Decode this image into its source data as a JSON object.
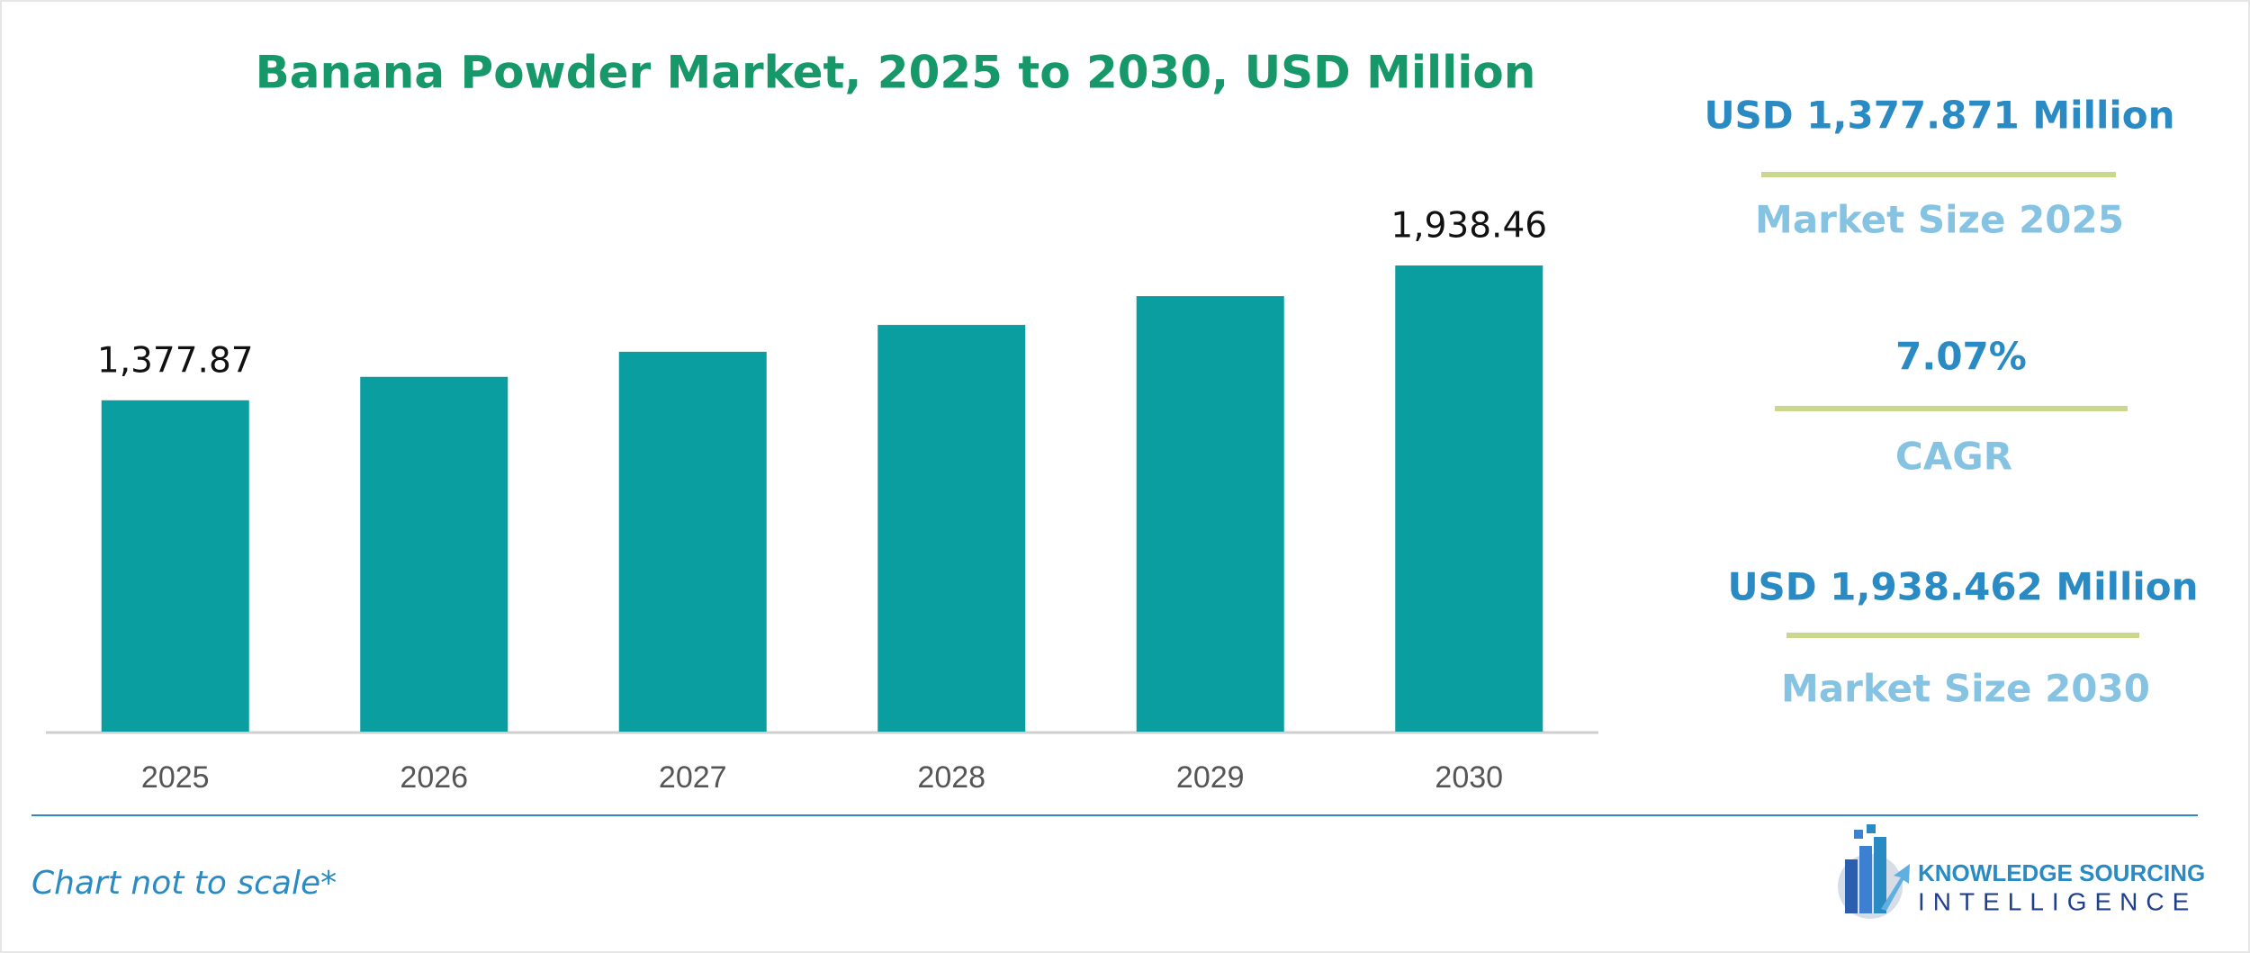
{
  "chart_data": {
    "type": "bar",
    "title": "Banana Powder Market, 2025 to 2030, USD Million",
    "categories": [
      "2025",
      "2026",
      "2027",
      "2028",
      "2029",
      "2030"
    ],
    "values": [
      1377.87,
      1475.3,
      1579.6,
      1691.3,
      1810.9,
      1938.46
    ],
    "value_labels": [
      "1,377.87",
      null,
      null,
      null,
      null,
      "1,938.46"
    ],
    "color": "#0a9ea0"
  },
  "side_panel": [
    {
      "value": "USD 1,377.871 Million",
      "label": "Market Size 2025"
    },
    {
      "value": "7.07%",
      "label": "CAGR"
    },
    {
      "value": "USD 1,938.462 Million",
      "label": "Market Size 2030"
    }
  ],
  "footer": {
    "note": "Chart not to scale*",
    "logo_line1": "KNOWLEDGE SOURCING",
    "logo_line2": "INTELLIGENCE"
  }
}
